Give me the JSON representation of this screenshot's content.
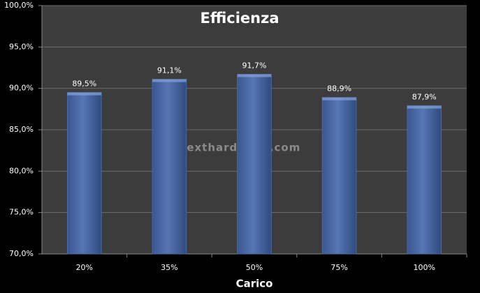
{
  "chart_data": {
    "type": "bar",
    "title": "Efficienza",
    "x_label": "Carico",
    "annotation": "nexthardware.com",
    "categories": [
      "20%",
      "35%",
      "50%",
      "75%",
      "100%"
    ],
    "values": [
      89.5,
      91.1,
      91.7,
      88.9,
      87.9
    ],
    "value_labels": [
      "89,5%",
      "91,1%",
      "91,7%",
      "88,9%",
      "87,9%"
    ],
    "color": "#4a6aa6",
    "ylim": [
      70,
      100
    ],
    "yticks": [
      {
        "value": 70,
        "label": "70,0%"
      },
      {
        "value": 75,
        "label": "75,0%"
      },
      {
        "value": 80,
        "label": "80,0%"
      },
      {
        "value": 85,
        "label": "85,0%"
      },
      {
        "value": 90,
        "label": "90,0%"
      },
      {
        "value": 95,
        "label": "95,0%"
      },
      {
        "value": 100,
        "label": "100,0%"
      }
    ],
    "grid": true
  }
}
